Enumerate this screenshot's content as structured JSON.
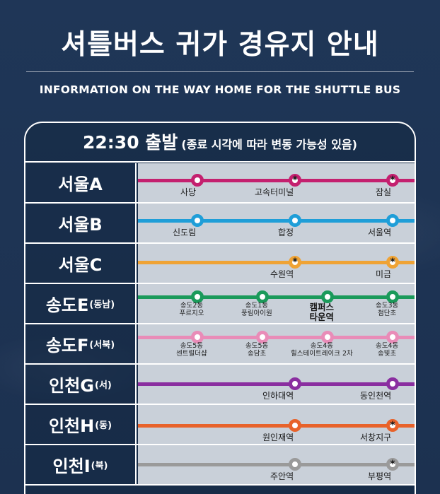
{
  "title": "셔틀버스 귀가 경유지 안내",
  "subtitle": "INFORMATION ON THE WAY HOME FOR THE SHUTTLE BUS",
  "header": {
    "time": "22:30 출발",
    "note": "(종료 시각에 따라 변동 가능성 있음)"
  },
  "routes": [
    {
      "name": "서울A",
      "suffix": "",
      "color": "#c4206f",
      "stops": [
        {
          "label": "사당",
          "star": false
        },
        {
          "label": "고속터미널",
          "star": true
        },
        {
          "label": "잠실",
          "star": true
        }
      ]
    },
    {
      "name": "서울B",
      "suffix": "",
      "color": "#1f9ed8",
      "stops": [
        {
          "label": "신도림",
          "star": false
        },
        {
          "label": "합정",
          "star": false
        },
        {
          "label": "서울역",
          "star": false
        }
      ]
    },
    {
      "name": "서울C",
      "suffix": "",
      "color": "#efa335",
      "stops": [
        {
          "label": "수원역",
          "star": true
        },
        {
          "label": "미금",
          "star": true
        }
      ]
    },
    {
      "name": "송도E",
      "suffix": "(동남)",
      "color": "#1a9a5a",
      "stops": [
        {
          "label": "송도2동",
          "label2": "푸르지오",
          "star": false
        },
        {
          "label": "송도1동",
          "label2": "풍림아이원",
          "star": false
        },
        {
          "label": "캠퍼스",
          "label2": "타운역",
          "star": false
        },
        {
          "label": "송도3동",
          "label2": "첨단초",
          "star": false
        }
      ]
    },
    {
      "name": "송도F",
      "suffix": "(서북)",
      "color": "#e98cb8",
      "stops": [
        {
          "label": "송도5동",
          "label2": "센트럴더샵",
          "star": false
        },
        {
          "label": "송도5동",
          "label2": "송담초",
          "star": false
        },
        {
          "label": "송도4동",
          "label2": "힐스테이트레이크 2차",
          "star": false
        },
        {
          "label": "송도4동",
          "label2": "송빛초",
          "star": false
        }
      ]
    },
    {
      "name": "인천G",
      "suffix": "(서)",
      "color": "#8a2ea0",
      "stops": [
        {
          "label": "인하대역",
          "star": false
        },
        {
          "label": "동인천역",
          "star": false
        }
      ]
    },
    {
      "name": "인천H",
      "suffix": "(동)",
      "color": "#e8622a",
      "stops": [
        {
          "label": "원인재역",
          "star": false
        },
        {
          "label": "서창지구",
          "star": true
        }
      ]
    },
    {
      "name": "인천I",
      "suffix": "(북)",
      "color": "#9a9a9a",
      "stops": [
        {
          "label": "주안역",
          "star": false
        },
        {
          "label": "부평역",
          "star": true
        }
      ]
    }
  ]
}
